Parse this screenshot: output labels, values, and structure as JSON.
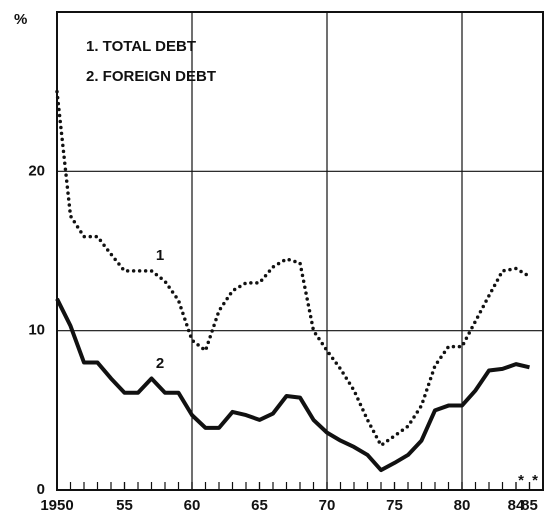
{
  "chart_data": {
    "type": "line",
    "y_label": "%",
    "legend": [
      "1. TOTAL DEBT",
      "2. FOREIGN DEBT"
    ],
    "annotations": [
      "1",
      "2",
      "*",
      "*"
    ],
    "x": [
      1950,
      1951,
      1952,
      1953,
      1954,
      1955,
      1956,
      1957,
      1958,
      1959,
      1960,
      1961,
      1962,
      1963,
      1964,
      1965,
      1966,
      1967,
      1968,
      1969,
      1970,
      1971,
      1972,
      1973,
      1974,
      1975,
      1976,
      1977,
      1978,
      1979,
      1980,
      1981,
      1982,
      1983,
      1984,
      1985
    ],
    "series": [
      {
        "name": "TOTAL DEBT",
        "color": "#111111",
        "style": "dotted",
        "values": [
          25.0,
          17.2,
          15.9,
          15.9,
          14.8,
          13.75,
          13.75,
          13.75,
          13.1,
          11.9,
          9.4,
          8.75,
          11.25,
          12.5,
          13.0,
          13.0,
          14.0,
          14.5,
          14.25,
          10.0,
          8.75,
          7.6,
          6.25,
          4.4,
          2.8,
          3.4,
          4.0,
          5.3,
          7.8,
          9.0,
          9.0,
          10.6,
          12.2,
          13.75,
          13.9,
          13.4
        ]
      },
      {
        "name": "FOREIGN DEBT",
        "color": "#111111",
        "style": "solid",
        "values": [
          12.0,
          10.3,
          8.0,
          8.0,
          7.0,
          6.1,
          6.1,
          7.0,
          6.1,
          6.1,
          4.7,
          3.9,
          3.9,
          4.9,
          4.7,
          4.4,
          4.8,
          5.9,
          5.8,
          4.4,
          3.6,
          3.1,
          2.7,
          2.2,
          1.25,
          1.7,
          2.2,
          3.1,
          5.0,
          5.3,
          5.3,
          6.25,
          7.5,
          7.6,
          7.9,
          7.7
        ]
      }
    ],
    "xlim": [
      1950,
      1986
    ],
    "xticks": [
      1950,
      {
        "value": 1955,
        "label": "55"
      },
      {
        "value": 1960,
        "label": "60"
      },
      {
        "value": 1965,
        "label": "65"
      },
      {
        "value": 1970,
        "label": "70"
      },
      {
        "value": 1975,
        "label": "75"
      },
      {
        "value": 1980,
        "label": "80"
      },
      {
        "value": 1984,
        "label": "84"
      },
      {
        "value": 1985,
        "label": "85"
      }
    ],
    "ylim": [
      0,
      30
    ],
    "yticks": [
      0,
      10,
      20
    ],
    "grid": true
  }
}
